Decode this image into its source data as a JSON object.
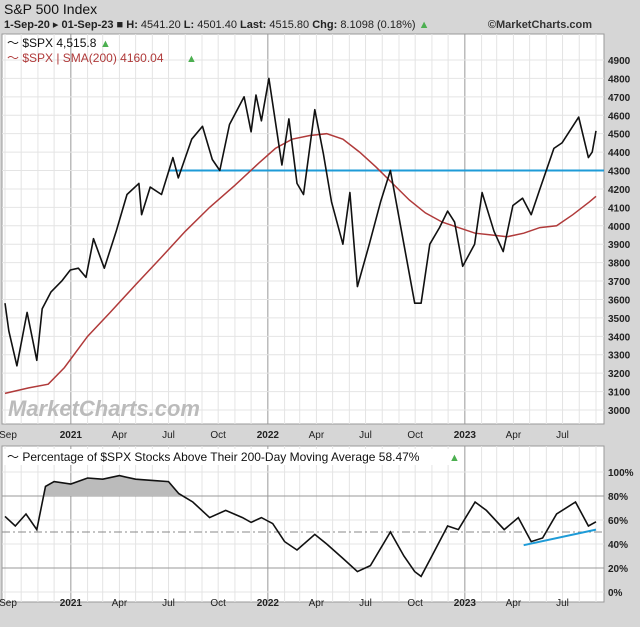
{
  "header": {
    "title": "S&P 500 Index",
    "range_start": "1-Sep-20",
    "range_end": "01-Sep-23",
    "h_label": "H:",
    "high": "4541.20",
    "l_label": "L:",
    "low": "4501.40",
    "last_label": "Last:",
    "last": "4515.80",
    "chg_label": "Chg:",
    "chg": "8.1098 (0.18%)",
    "copyright": "©MarketCharts.com"
  },
  "watermark": "MarketCharts.com",
  "colors": {
    "price": "#111111",
    "sma": "#b03a3a",
    "support": "#1e9bd7",
    "up": "#4caf50"
  },
  "chart_data": [
    {
      "type": "line",
      "legend": [
        {
          "name": "$SPX 4,515.8",
          "color": "#111111"
        },
        {
          "name": "$SPX | SMA(200) 4160.04",
          "color": "#b03a3a"
        }
      ],
      "ylim": [
        2900,
        4950
      ],
      "yticks": [
        3000,
        3100,
        3200,
        3300,
        3400,
        3500,
        3600,
        3700,
        3800,
        3900,
        4000,
        4100,
        4200,
        4300,
        4400,
        4500,
        4600,
        4700,
        4800,
        4900
      ],
      "xticks": [
        "Sep",
        "2021",
        "Apr",
        "Jul",
        "Oct",
        "2022",
        "Apr",
        "Jul",
        "Oct",
        "2023",
        "Apr",
        "Jul"
      ],
      "grid": true,
      "legend_position": "top-left",
      "series": [
        {
          "x": [
            "2020-09-01",
            "2020-09-08",
            "2020-09-23",
            "2020-10-12",
            "2020-10-30",
            "2020-11-09",
            "2020-11-25",
            "2020-12-15",
            "2020-12-31",
            "2021-01-15",
            "2021-01-29",
            "2021-02-12",
            "2021-03-04",
            "2021-03-26",
            "2021-04-15",
            "2021-05-07",
            "2021-05-12",
            "2021-05-28",
            "2021-06-18",
            "2021-07-09",
            "2021-07-19",
            "2021-08-13",
            "2021-09-02",
            "2021-09-20",
            "2021-10-04",
            "2021-10-22",
            "2021-11-18",
            "2021-12-01",
            "2021-12-10",
            "2021-12-20",
            "2022-01-03",
            "2022-01-27",
            "2022-02-09",
            "2022-02-24",
            "2022-03-08",
            "2022-03-29",
            "2022-04-14",
            "2022-04-29",
            "2022-05-20",
            "2022-06-02",
            "2022-06-16",
            "2022-07-08",
            "2022-07-29",
            "2022-08-16",
            "2022-09-12",
            "2022-09-30",
            "2022-10-12",
            "2022-10-28",
            "2022-11-15",
            "2022-11-30",
            "2022-12-13",
            "2022-12-28",
            "2023-01-19",
            "2023-02-02",
            "2023-02-24",
            "2023-03-13",
            "2023-03-31",
            "2023-04-18",
            "2023-05-04",
            "2023-05-19",
            "2023-06-15",
            "2023-06-30",
            "2023-07-31",
            "2023-08-18",
            "2023-08-25",
            "2023-09-01"
          ],
          "values": [
            3580,
            3430,
            3240,
            3530,
            3270,
            3550,
            3640,
            3700,
            3760,
            3770,
            3720,
            3930,
            3770,
            3970,
            4170,
            4230,
            4060,
            4210,
            4170,
            4370,
            4260,
            4470,
            4540,
            4360,
            4300,
            4550,
            4700,
            4510,
            4710,
            4570,
            4800,
            4330,
            4580,
            4230,
            4170,
            4630,
            4390,
            4130,
            3900,
            4180,
            3670,
            3900,
            4130,
            4300,
            3870,
            3580,
            3580,
            3900,
            3990,
            4080,
            4020,
            3780,
            3900,
            4180,
            3970,
            3860,
            4110,
            4150,
            4060,
            4190,
            4420,
            4450,
            4590,
            4370,
            4400,
            4515
          ]
        },
        {
          "name": "SMA(200)",
          "x": [
            "2020-09-01",
            "2020-10-15",
            "2020-11-20",
            "2020-12-20",
            "2021-02-01",
            "2021-03-15",
            "2021-05-01",
            "2021-06-15",
            "2021-08-01",
            "2021-09-15",
            "2021-11-01",
            "2021-12-15",
            "2022-01-15",
            "2022-02-15",
            "2022-03-20",
            "2022-04-20",
            "2022-05-20",
            "2022-06-20",
            "2022-07-20",
            "2022-08-20",
            "2022-09-20",
            "2022-10-20",
            "2022-11-20",
            "2022-12-20",
            "2023-01-20",
            "2023-02-20",
            "2023-03-20",
            "2023-04-20",
            "2023-05-20",
            "2023-06-20",
            "2023-07-20",
            "2023-08-20",
            "2023-09-01"
          ],
          "values": [
            3090,
            3120,
            3140,
            3230,
            3400,
            3530,
            3680,
            3820,
            3970,
            4100,
            4220,
            4340,
            4420,
            4470,
            4490,
            4500,
            4470,
            4400,
            4320,
            4230,
            4140,
            4070,
            4020,
            3990,
            3960,
            3950,
            3940,
            3960,
            3990,
            4000,
            4060,
            4130,
            4160
          ]
        }
      ],
      "annotations": [
        {
          "type": "hline",
          "value": 4300,
          "from": "2021-07-01",
          "color": "#1e9bd7"
        }
      ]
    },
    {
      "type": "line",
      "title": "Percentage of $SPX Stocks Above Their 200-Day Moving Average 58.47%",
      "ylim": [
        -5,
        105
      ],
      "yticks": [
        "100%",
        "80%",
        "60%",
        "40%",
        "20%",
        "0%"
      ],
      "xticks": [
        "Sep",
        "2021",
        "Apr",
        "Jul",
        "Oct",
        "2022",
        "Apr",
        "Jul",
        "Oct",
        "2023",
        "Apr",
        "Jul"
      ],
      "reference_lines": [
        80,
        50,
        20
      ],
      "series": [
        {
          "x": [
            "2020-09-01",
            "2020-09-20",
            "2020-10-10",
            "2020-10-30",
            "2020-11-15",
            "2020-12-01",
            "2021-01-01",
            "2021-02-01",
            "2021-03-01",
            "2021-04-01",
            "2021-05-01",
            "2021-06-01",
            "2021-07-01",
            "2021-07-20",
            "2021-08-15",
            "2021-09-15",
            "2021-10-15",
            "2021-11-15",
            "2021-12-01",
            "2021-12-20",
            "2022-01-10",
            "2022-02-01",
            "2022-02-24",
            "2022-03-29",
            "2022-04-20",
            "2022-05-20",
            "2022-06-16",
            "2022-07-10",
            "2022-08-16",
            "2022-09-10",
            "2022-09-30",
            "2022-10-12",
            "2022-11-01",
            "2022-11-30",
            "2022-12-20",
            "2023-01-20",
            "2023-02-10",
            "2023-03-15",
            "2023-04-10",
            "2023-05-04",
            "2023-05-25",
            "2023-06-20",
            "2023-07-25",
            "2023-08-18",
            "2023-09-01"
          ],
          "values": [
            63,
            55,
            65,
            52,
            88,
            92,
            90,
            95,
            94,
            97,
            94,
            93,
            92,
            82,
            75,
            62,
            68,
            62,
            58,
            62,
            57,
            42,
            35,
            48,
            40,
            28,
            17,
            22,
            50,
            30,
            17,
            13,
            30,
            55,
            52,
            75,
            68,
            52,
            62,
            42,
            45,
            65,
            75,
            55,
            58.47
          ]
        }
      ],
      "annotations": [
        {
          "type": "trendline",
          "from": [
            "2023-04-20",
            39
          ],
          "to": [
            "2023-09-01",
            52
          ],
          "color": "#1e9bd7"
        }
      ]
    }
  ]
}
